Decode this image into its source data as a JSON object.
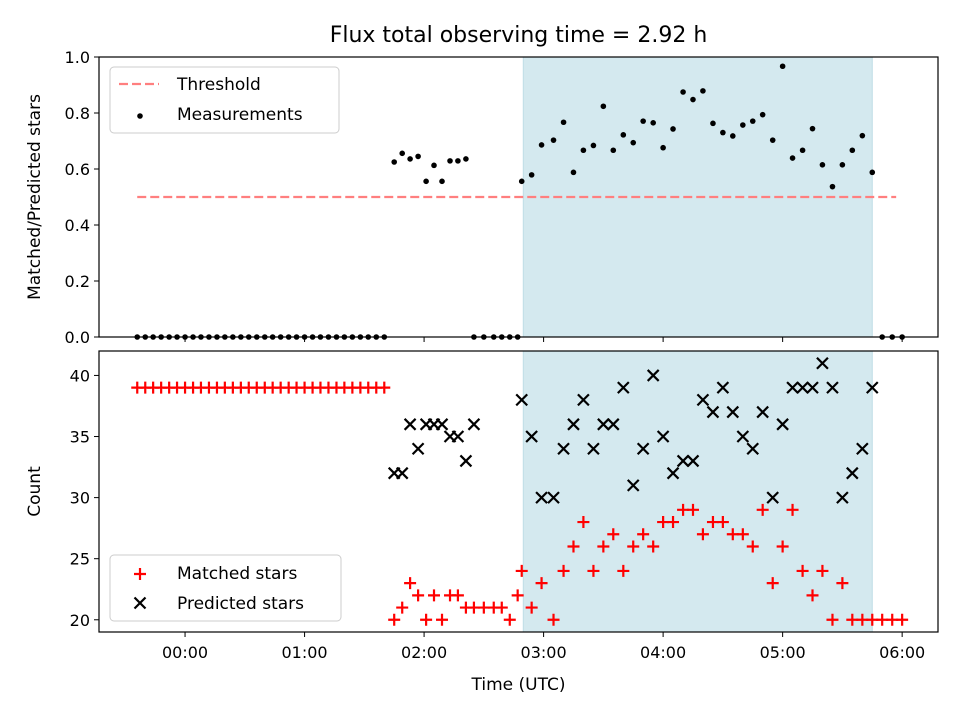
{
  "chart_data": [
    {
      "type": "scatter",
      "title": "Flux total observing time = 2.92 h",
      "xlabel": "",
      "ylabel": "Matched/Predicted stars",
      "ylim": [
        0,
        1.0
      ],
      "yticks": [
        "0.0",
        "0.2",
        "0.4",
        "0.6",
        "0.8",
        "1.0"
      ],
      "xlim": [
        -0.72,
        6.3
      ],
      "highlight_span": [
        2.83,
        5.75
      ],
      "highlight_color": "#d4e9ef",
      "threshold": {
        "name": "Threshold",
        "value": 0.5,
        "x": [
          -0.4,
          5.95
        ],
        "color": "#ff7f7f"
      },
      "series": [
        {
          "name": "Measurements",
          "color": "#000000",
          "x": [
            -0.4,
            -0.333,
            -0.267,
            -0.2,
            -0.133,
            -0.067,
            0.0,
            0.067,
            0.133,
            0.2,
            0.267,
            0.333,
            0.4,
            0.467,
            0.533,
            0.6,
            0.667,
            0.733,
            0.8,
            0.867,
            0.933,
            1.0,
            1.067,
            1.133,
            1.2,
            1.267,
            1.333,
            1.4,
            1.467,
            1.533,
            1.6,
            1.667,
            1.75,
            1.817,
            1.883,
            1.95,
            2.017,
            2.083,
            2.15,
            2.217,
            2.283,
            2.35,
            2.417,
            2.5,
            2.583,
            2.65,
            2.717,
            2.783,
            2.817,
            2.9,
            2.983,
            3.083,
            3.167,
            3.25,
            3.333,
            3.417,
            3.5,
            3.583,
            3.667,
            3.75,
            3.833,
            3.917,
            4.0,
            4.083,
            4.167,
            4.25,
            4.333,
            4.417,
            4.5,
            4.583,
            4.667,
            4.75,
            4.833,
            4.917,
            5.0,
            5.083,
            5.167,
            5.25,
            5.333,
            5.417,
            5.5,
            5.583,
            5.667,
            5.75,
            5.833,
            5.917,
            6.0
          ],
          "y": [
            0,
            0,
            0,
            0,
            0,
            0,
            0,
            0,
            0,
            0,
            0,
            0,
            0,
            0,
            0,
            0,
            0,
            0,
            0,
            0,
            0,
            0,
            0,
            0,
            0,
            0,
            0,
            0,
            0,
            0,
            0,
            0,
            0.625,
            0.656,
            0.636,
            0.645,
            0.556,
            0.613,
            0.556,
            0.629,
            0.629,
            0.636,
            0,
            0,
            0,
            0,
            0,
            0,
            0.556,
            0.579,
            0.686,
            0.703,
            0.767,
            0.588,
            0.667,
            0.684,
            0.824,
            0.667,
            0.722,
            0.694,
            0.771,
            0.765,
            0.676,
            0.743,
            0.875,
            0.848,
            0.879,
            0.763,
            0.73,
            0.718,
            0.757,
            0.771,
            0.794,
            0.703,
            0.967,
            0.639,
            0.667,
            0.744,
            0.615,
            0.537,
            0.615,
            0.667,
            0.719,
            0.588,
            0,
            0,
            0
          ]
        }
      ]
    },
    {
      "type": "scatter",
      "title": "",
      "xlabel": "Time (UTC)",
      "ylabel": "Count",
      "ylim": [
        19,
        42
      ],
      "yticks": [
        "20",
        "25",
        "30",
        "35",
        "40"
      ],
      "xlim": [
        -0.72,
        6.3
      ],
      "xticks": [
        "00:00",
        "01:00",
        "02:00",
        "03:00",
        "04:00",
        "05:00",
        "06:00"
      ],
      "highlight_span": [
        2.83,
        5.75
      ],
      "highlight_color": "#d4e9ef",
      "series": [
        {
          "name": "Matched stars",
          "marker": "plus",
          "color": "#ff0000",
          "x": [
            -0.4,
            -0.333,
            -0.267,
            -0.2,
            -0.133,
            -0.067,
            0.0,
            0.067,
            0.133,
            0.2,
            0.267,
            0.333,
            0.4,
            0.467,
            0.533,
            0.6,
            0.667,
            0.733,
            0.8,
            0.867,
            0.933,
            1.0,
            1.067,
            1.133,
            1.2,
            1.267,
            1.333,
            1.4,
            1.467,
            1.533,
            1.6,
            1.667,
            1.75,
            1.817,
            1.883,
            1.95,
            2.017,
            2.083,
            2.15,
            2.217,
            2.283,
            2.35,
            2.417,
            2.5,
            2.583,
            2.65,
            2.717,
            2.783,
            2.817,
            2.9,
            2.983,
            3.083,
            3.167,
            3.25,
            3.333,
            3.417,
            3.5,
            3.583,
            3.667,
            3.75,
            3.833,
            3.917,
            4.0,
            4.083,
            4.167,
            4.25,
            4.333,
            4.417,
            4.5,
            4.583,
            4.667,
            4.75,
            4.833,
            4.917,
            5.0,
            5.083,
            5.167,
            5.25,
            5.333,
            5.417,
            5.5,
            5.583,
            5.667,
            5.75,
            5.833,
            5.917,
            6.0
          ],
          "y": [
            39,
            39,
            39,
            39,
            39,
            39,
            39,
            39,
            39,
            39,
            39,
            39,
            39,
            39,
            39,
            39,
            39,
            39,
            39,
            39,
            39,
            39,
            39,
            39,
            39,
            39,
            39,
            39,
            39,
            39,
            39,
            39,
            20,
            21,
            23,
            22,
            20,
            22,
            20,
            22,
            22,
            21,
            21,
            21,
            21,
            21,
            20,
            22,
            24,
            21,
            23,
            20,
            24,
            26,
            28,
            24,
            26,
            27,
            24,
            26,
            27,
            26,
            28,
            28,
            29,
            29,
            27,
            28,
            28,
            27,
            27,
            26,
            29,
            23,
            26,
            29,
            24,
            22,
            24,
            20,
            23,
            20,
            20,
            20,
            20,
            20,
            20
          ]
        },
        {
          "name": "Predicted stars",
          "marker": "x",
          "color": "#000000",
          "x": [
            1.75,
            1.817,
            1.883,
            1.95,
            2.017,
            2.083,
            2.15,
            2.217,
            2.283,
            2.35,
            2.417,
            2.817,
            2.9,
            2.983,
            3.083,
            3.167,
            3.25,
            3.333,
            3.417,
            3.5,
            3.583,
            3.667,
            3.75,
            3.833,
            3.917,
            4.0,
            4.083,
            4.167,
            4.25,
            4.333,
            4.417,
            4.5,
            4.583,
            4.667,
            4.75,
            4.833,
            4.917,
            5.0,
            5.083,
            5.167,
            5.25,
            5.333,
            5.417,
            5.5,
            5.583,
            5.667,
            5.75
          ],
          "y": [
            32,
            32,
            36,
            34,
            36,
            36,
            36,
            35,
            35,
            33,
            36,
            38,
            35,
            30,
            30,
            34,
            36,
            38,
            34,
            36,
            36,
            39,
            31,
            34,
            40,
            35,
            32,
            33,
            33,
            38,
            37,
            39,
            37,
            35,
            34,
            37,
            30,
            36,
            39,
            39,
            39,
            41,
            39,
            30,
            32,
            34,
            39
          ]
        }
      ]
    }
  ]
}
